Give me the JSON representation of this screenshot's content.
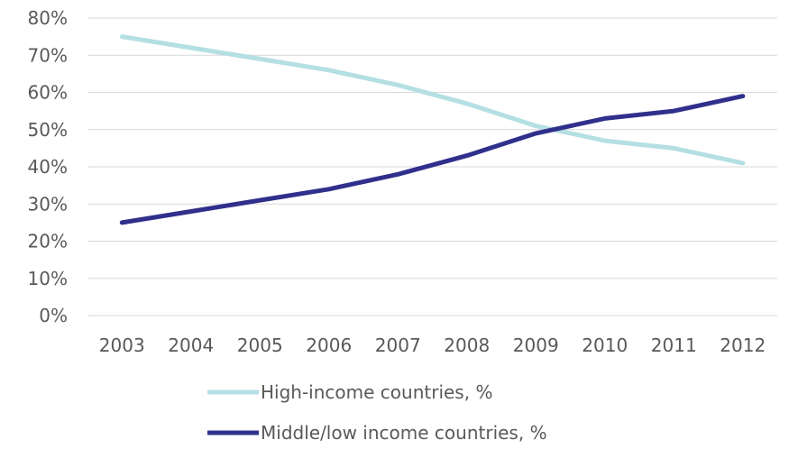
{
  "chart_data": {
    "type": "line",
    "title": "",
    "xlabel": "",
    "ylabel": "",
    "x": [
      "2003",
      "2004",
      "2005",
      "2006",
      "2007",
      "2008",
      "2009",
      "2010",
      "2011",
      "2012"
    ],
    "ylim": [
      0,
      80
    ],
    "yticks": [
      "0%",
      "10%",
      "20%",
      "30%",
      "40%",
      "50%",
      "60%",
      "70%",
      "80%"
    ],
    "grid": true,
    "legend_position": "bottom",
    "series": [
      {
        "name": "High-income countries, %",
        "color": "#b4dfe3",
        "values": [
          75,
          72,
          69,
          66,
          62,
          57,
          51,
          47,
          45,
          41
        ]
      },
      {
        "name": "Middle/low income countries, %",
        "color": "#30308c",
        "values": [
          25,
          28,
          31,
          34,
          38,
          43,
          49,
          53,
          55,
          59
        ]
      }
    ]
  }
}
